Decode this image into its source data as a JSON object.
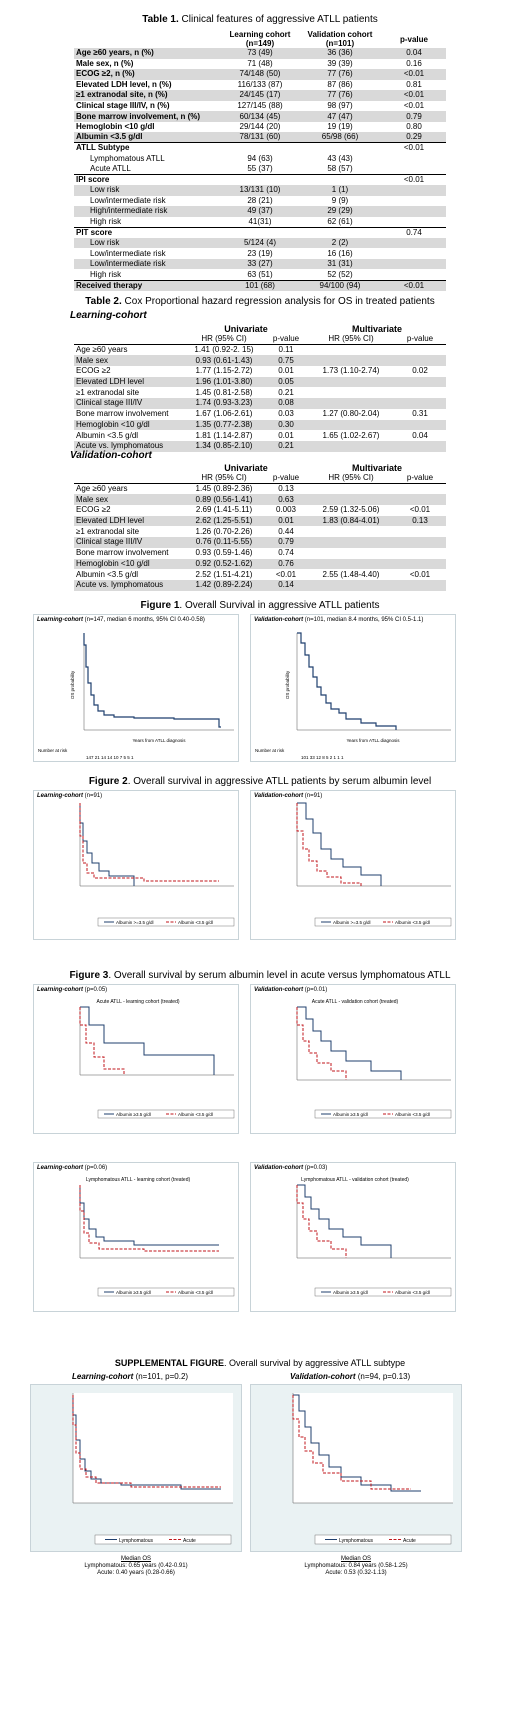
{
  "table1": {
    "caption_bold": "Table 1.",
    "caption": " Clinical features of aggressive ATLL patients",
    "headers": [
      "",
      "Learning cohort\n(n=149)",
      "Validation cohort\n(n=101)",
      "p-value"
    ],
    "rows": [
      [
        "Age ≥60 years, n (%)",
        "73 (49)",
        "36 (36)",
        "0.04"
      ],
      [
        "Male sex, n (%)",
        "71 (48)",
        "39 (39)",
        "0.16"
      ],
      [
        "ECOG ≥2, n (%)",
        "74/148 (50)",
        "77 (76)",
        "<0.01"
      ],
      [
        "Elevated LDH level, n (%)",
        "116/133 (87)",
        "87 (86)",
        "0.81"
      ],
      [
        "≥1 extranodal site, n (%)",
        "24/145 (17)",
        "77 (76)",
        "<0.01"
      ],
      [
        "Clinical stage III/IV, n (%)",
        "127/145 (88)",
        "98 (97)",
        "<0.01"
      ],
      [
        "Bone marrow involvement, n (%)",
        "60/134 (45)",
        "47 (47)",
        "0.79"
      ],
      [
        "Hemoglobin <10 g/dl",
        "29/144 (20)",
        "19 (19)",
        "0.80"
      ],
      [
        "Albumin <3.5 g/dl",
        "78/131 (60)",
        "65/98 (66)",
        "0.29"
      ],
      [
        "ATLL Subtype",
        "",
        "",
        "<0.01"
      ],
      [
        "Lymphomatous ATLL",
        "94 (63)",
        "43 (43)",
        ""
      ],
      [
        "Acute ATLL",
        "55 (37)",
        "58 (57)",
        ""
      ],
      [
        "IPI score",
        "",
        "",
        "<0.01"
      ],
      [
        "Low risk",
        "13/131 (10)",
        "1 (1)",
        ""
      ],
      [
        "Low/intermediate risk",
        "28 (21)",
        "9 (9)",
        ""
      ],
      [
        "High/intermediate risk",
        "49 (37)",
        "29 (29)",
        ""
      ],
      [
        "High risk",
        "41(31)",
        "62 (61)",
        ""
      ],
      [
        "PIT score",
        "",
        "",
        "0.74"
      ],
      [
        "Low risk",
        "5/124 (4)",
        "2 (2)",
        ""
      ],
      [
        "Low/intermediate risk",
        "23 (19)",
        "16 (16)",
        ""
      ],
      [
        "Low/intermediate risk",
        "33 (27)",
        "31 (31)",
        ""
      ],
      [
        "High risk",
        "63 (51)",
        "52 (52)",
        ""
      ],
      [
        "Received therapy",
        "101 (68)",
        "94/100 (94)",
        "<0.01"
      ]
    ]
  },
  "table2": {
    "caption_bold": "Table 2.",
    "caption": " Cox Proportional hazard regression analysis for OS in treated patients",
    "learning_label": "Learning-cohort",
    "validation_label": "Validation-cohort",
    "univariate": "Univariate",
    "multivariate": "Multivariate",
    "hr": "HR (95% CI)",
    "p": "p-value",
    "learning_rows": [
      [
        "Age ≥60 years",
        "1.41 (0.92-2. 15)",
        "0.11",
        "",
        ""
      ],
      [
        "Male sex",
        "0.93 (0.61-1.43)",
        "0.75",
        "",
        ""
      ],
      [
        "ECOG ≥2",
        "1.77 (1.15-2.72)",
        "0.01",
        "1.73 (1.10-2.74)",
        "0.02"
      ],
      [
        "Elevated LDH level",
        "1.96 (1.01-3.80)",
        "0.05",
        "",
        ""
      ],
      [
        "≥1 extranodal site",
        "1.45 (0.81-2.58)",
        "0.21",
        "",
        ""
      ],
      [
        "Clinical stage III/IV",
        "1.74 (0.93-3.23)",
        "0.08",
        "",
        ""
      ],
      [
        "Bone marrow involvement",
        "1.67 (1.06-2.61)",
        "0.03",
        "1.27 (0.80-2.04)",
        "0.31"
      ],
      [
        "Hemoglobin <10 g/dl",
        "1.35 (0.77-2.38)",
        "0.30",
        "",
        ""
      ],
      [
        "Albumin <3.5 g/dl",
        "1.81 (1.14-2.87)",
        "0.01",
        "1.65 (1.02-2.67)",
        "0.04"
      ],
      [
        "Acute vs. lymphomatous",
        "1.34 (0.85-2.10)",
        "0.21",
        "",
        ""
      ]
    ],
    "validation_rows": [
      [
        "Age ≥60 years",
        "1.45 (0.89-2.36)",
        "0.13",
        "",
        ""
      ],
      [
        "Male sex",
        "0.89 (0.56-1.41)",
        "0.63",
        "",
        ""
      ],
      [
        "ECOG ≥2",
        "2.69 (1.41-5.11)",
        "0.003",
        "2.59 (1.32-5.06)",
        "<0.01"
      ],
      [
        "Elevated LDH level",
        "2.62 (1.25-5.51)",
        "0.01",
        "1.83 (0.84-4.01)",
        "0.13"
      ],
      [
        "≥1 extranodal site",
        "1.26 (0.70-2.26)",
        "0.44",
        "",
        ""
      ],
      [
        "Clinical stage III/IV",
        "0.76 (0.11-5.55)",
        "0.79",
        "",
        ""
      ],
      [
        "Bone marrow involvement",
        "0.93 (0.59-1.46)",
        "0.74",
        "",
        ""
      ],
      [
        "Hemoglobin <10 g/dl",
        "0.92 (0.52-1.62)",
        "0.76",
        "",
        ""
      ],
      [
        "Albumin <3.5 g/dl",
        "2.52 (1.51-4.21)",
        "<0.01",
        "2.55 (1.48-4.40)",
        "<0.01"
      ],
      [
        "Acute vs. lymphomatous",
        "1.42 (0.89-2.24)",
        "0.14",
        "",
        ""
      ]
    ]
  },
  "fig1": {
    "caption_bold": "Figure 1",
    "caption": ". Overall Survival in aggressive ATLL patients",
    "left_title_bold": "Learning-cohort",
    "left_title": " (n=147, median 6 months, 95% CI 0.40-0.58)",
    "right_title_bold": "Validation-cohort",
    "right_title": " (n=101, median 8.4 months, 95% CI 0.5-1.1)",
    "ylabel": "OS probability",
    "xlabel": "Years from ATLL diagnosis",
    "risk_label": "Number at risk",
    "left_risk": "147   21   14   14   10   7   5   5   1",
    "right_risk": "101   33   12   8   5   2   1   1   1"
  },
  "fig2": {
    "caption_bold": "Figure 2",
    "caption": ". Overall survival in aggressive ATLL patients by serum albumin level",
    "left_title_bold": "Learning-cohort",
    "left_title": " (n=91)",
    "right_title_bold": "Validation-cohort",
    "right_title": " (n=91)",
    "legend_a": "Albumin >=3.5 g/dl",
    "legend_b": "Albumin <3.5 g/dl"
  },
  "fig3": {
    "caption_bold": "Figure 3",
    "caption": ". Overall survival by serum albumin level in acute versus lymphomatous ATLL",
    "p1": "Learning-cohort",
    "p1v": " (p=0.05)",
    "p2": "Validation-cohort",
    "p2v": " (p=0.01)",
    "p3": "Learning-cohort",
    "p3v": " (p=0.06)",
    "p4": "Validation-cohort",
    "p4v": " (p=0.03)",
    "t1": "Acute ATLL - learning cohort (treated)",
    "t2": "Acute ATLL - validation cohort (treated)",
    "t3": "Lymphomatous ATLL - learning cohort (treated)",
    "t4": "Lymphomatous ATLL - validation cohort (treated)",
    "legend_a": "Albumin ≥3.5 g/dl",
    "legend_b": "Albumin <3.5 g/dl"
  },
  "supp": {
    "caption_bold": "SUPPLEMENTAL FIGURE",
    "caption": ". Overall survival by aggressive ATLL subtype",
    "left_title": "Learning-cohort",
    "left_p": " (n=101, p=0.2)",
    "right_title": "Validation-cohort",
    "right_p": " (n=94, p=0.13)",
    "legend_a": "Lymphomatous",
    "legend_b": "Acute",
    "median": "Median OS",
    "left_l1": "Lymphomatous: 0.65 years (0.42-0.91)",
    "left_l2": "Acute: 0.40 years (0.28-0.66)",
    "right_l1": "Lymphomatous: 0.84 years (0.58-1.25)",
    "right_l2": "Acute: 0.53 (0.32-1.13)"
  },
  "colors": {
    "navy": "#1f3f6e",
    "red": "#c0151b",
    "shade": "#d9d9d9",
    "plotbg": "#eaf2f3"
  }
}
